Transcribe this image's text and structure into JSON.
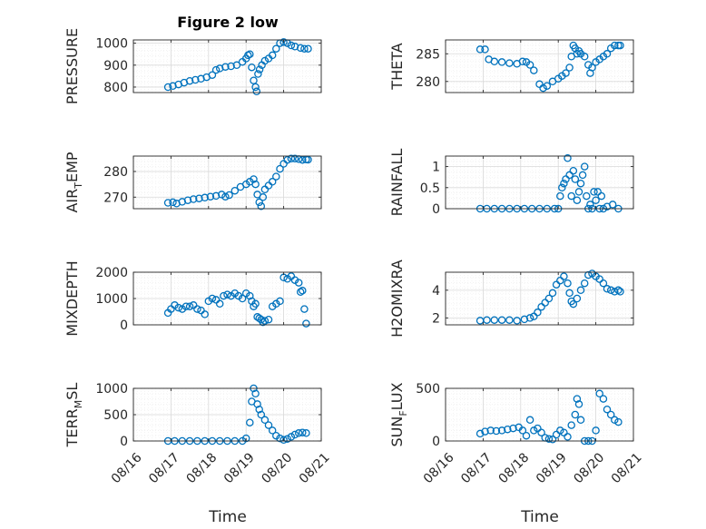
{
  "figure": {
    "title": "Figure 2 low",
    "xlabel": "Time"
  },
  "colors": {
    "marker": "#0072BD",
    "axis": "#262626",
    "grid": "#d9d9d9",
    "minorgrid": "#ececec"
  },
  "chart_data": [
    {
      "type": "scatter",
      "ylabel": "PRESSURE",
      "xlim": [
        0,
        5
      ],
      "ylim": [
        775,
        1015
      ],
      "yticks": [
        800,
        900,
        1000
      ],
      "xticks": [
        0,
        1,
        2,
        3,
        4,
        5
      ],
      "xticklabels": [],
      "grid": true,
      "x": [
        0.92,
        1.05,
        1.2,
        1.35,
        1.5,
        1.65,
        1.8,
        1.95,
        2.1,
        2.2,
        2.3,
        2.45,
        2.6,
        2.75,
        2.9,
        3.0,
        3.05,
        3.1,
        3.15,
        3.2,
        3.25,
        3.28,
        3.32,
        3.36,
        3.42,
        3.5,
        3.6,
        3.7,
        3.8,
        3.9,
        4.0,
        4.1,
        4.2,
        4.3,
        4.45,
        4.55,
        4.65
      ],
      "y": [
        800,
        805,
        812,
        820,
        828,
        833,
        838,
        845,
        855,
        878,
        885,
        892,
        895,
        900,
        915,
        930,
        945,
        950,
        890,
        830,
        800,
        780,
        860,
        880,
        900,
        920,
        930,
        945,
        975,
        1000,
        1005,
        1000,
        990,
        985,
        978,
        975,
        975
      ]
    },
    {
      "type": "scatter",
      "ylabel": "THETA",
      "xlim": [
        0,
        5
      ],
      "ylim": [
        278,
        287.5
      ],
      "yticks": [
        280,
        285
      ],
      "xticks": [
        0,
        1,
        2,
        3,
        4,
        5
      ],
      "xticklabels": [],
      "grid": true,
      "x": [
        0.92,
        1.05,
        1.15,
        1.3,
        1.5,
        1.7,
        1.9,
        2.05,
        2.15,
        2.25,
        2.35,
        2.5,
        2.6,
        2.7,
        2.85,
        3.0,
        3.1,
        3.2,
        3.3,
        3.35,
        3.4,
        3.45,
        3.5,
        3.55,
        3.6,
        3.7,
        3.8,
        3.85,
        3.9,
        4.0,
        4.1,
        4.2,
        4.3,
        4.4,
        4.5,
        4.6,
        4.65
      ],
      "y": [
        285.8,
        285.8,
        284,
        283.6,
        283.5,
        283.3,
        283.2,
        283.6,
        283.5,
        283,
        282,
        279.5,
        278.8,
        279.2,
        280,
        280.5,
        281,
        281.5,
        282.5,
        284.5,
        286.5,
        286,
        285,
        285.5,
        285,
        284.5,
        283,
        281.5,
        282.5,
        283.5,
        284,
        284.5,
        285,
        286,
        286.5,
        286.5,
        286.5
      ]
    },
    {
      "type": "scatter",
      "ylabel": "AIR",
      "ylabel_sub": "T",
      "ylabel_tail": "EMP",
      "xlim": [
        0,
        5
      ],
      "ylim": [
        265.5,
        286
      ],
      "yticks": [
        270,
        280
      ],
      "xticks": [
        0,
        1,
        2,
        3,
        4,
        5
      ],
      "xticklabels": [],
      "grid": true,
      "x": [
        0.92,
        1.05,
        1.15,
        1.3,
        1.45,
        1.6,
        1.75,
        1.9,
        2.05,
        2.2,
        2.35,
        2.45,
        2.55,
        2.7,
        2.85,
        3.0,
        3.1,
        3.2,
        3.25,
        3.3,
        3.35,
        3.4,
        3.45,
        3.5,
        3.6,
        3.7,
        3.8,
        3.9,
        4.0,
        4.1,
        4.2,
        4.3,
        4.4,
        4.5,
        4.6,
        4.65
      ],
      "y": [
        267.8,
        268,
        267.5,
        268.2,
        268.8,
        269.2,
        269.5,
        269.8,
        270.2,
        270.5,
        271,
        270.2,
        270.8,
        272.5,
        274,
        275,
        276,
        277,
        275,
        271,
        268,
        266.5,
        270,
        273,
        274.5,
        276,
        278,
        281,
        283,
        284.5,
        285,
        285,
        284.8,
        284.5,
        284.7,
        284.6
      ]
    },
    {
      "type": "scatter",
      "ylabel": "RAINFALL",
      "xlim": [
        0,
        5
      ],
      "ylim": [
        0,
        1.25
      ],
      "yticks": [
        0,
        0.5,
        1
      ],
      "xticks": [
        0,
        1,
        2,
        3,
        4,
        5
      ],
      "xticklabels": [],
      "grid": true,
      "x": [
        0.92,
        1.1,
        1.3,
        1.5,
        1.7,
        1.9,
        2.1,
        2.3,
        2.5,
        2.7,
        2.9,
        3.0,
        3.05,
        3.1,
        3.15,
        3.2,
        3.25,
        3.3,
        3.35,
        3.4,
        3.45,
        3.5,
        3.55,
        3.6,
        3.65,
        3.7,
        3.75,
        3.8,
        3.85,
        3.9,
        3.95,
        4.0,
        4.05,
        4.1,
        4.15,
        4.2,
        4.3,
        4.45,
        4.6
      ],
      "y": [
        0,
        0,
        0,
        0,
        0,
        0,
        0,
        0,
        0,
        0,
        0,
        0,
        0.3,
        0.5,
        0.6,
        0.7,
        1.2,
        0.8,
        0.3,
        0.9,
        0.7,
        0.2,
        0.4,
        0.6,
        0.8,
        1.0,
        0.3,
        0,
        0.1,
        0,
        0.4,
        0.2,
        0.4,
        0,
        0.3,
        0,
        0.05,
        0.1,
        0
      ]
    },
    {
      "type": "scatter",
      "ylabel": "MIXDEPTH",
      "xlim": [
        0,
        5
      ],
      "ylim": [
        0,
        2000
      ],
      "yticks": [
        0,
        1000,
        2000
      ],
      "xticks": [
        0,
        1,
        2,
        3,
        4,
        5
      ],
      "xticklabels": [],
      "grid": true,
      "x": [
        0.92,
        1.0,
        1.1,
        1.2,
        1.3,
        1.4,
        1.5,
        1.6,
        1.7,
        1.8,
        1.9,
        2.0,
        2.1,
        2.2,
        2.3,
        2.4,
        2.5,
        2.6,
        2.7,
        2.8,
        2.9,
        3.0,
        3.1,
        3.15,
        3.2,
        3.25,
        3.3,
        3.35,
        3.4,
        3.45,
        3.5,
        3.6,
        3.7,
        3.8,
        3.9,
        4.0,
        4.1,
        4.2,
        4.3,
        4.4,
        4.45,
        4.5,
        4.55,
        4.6
      ],
      "y": [
        450,
        600,
        750,
        650,
        600,
        700,
        700,
        750,
        600,
        550,
        400,
        900,
        1000,
        950,
        800,
        1100,
        1150,
        1100,
        1200,
        1100,
        1000,
        1200,
        1100,
        900,
        700,
        800,
        300,
        250,
        200,
        100,
        150,
        200,
        700,
        800,
        900,
        1800,
        1750,
        1850,
        1700,
        1600,
        1250,
        1300,
        600,
        50
      ]
    },
    {
      "type": "scatter",
      "ylabel": "H2OMIXRA",
      "xlim": [
        0,
        5
      ],
      "ylim": [
        1.5,
        5.3
      ],
      "yticks": [
        2,
        4
      ],
      "xticks": [
        0,
        1,
        2,
        3,
        4,
        5
      ],
      "xticklabels": [],
      "grid": true,
      "x": [
        0.92,
        1.1,
        1.3,
        1.5,
        1.7,
        1.9,
        2.1,
        2.25,
        2.35,
        2.45,
        2.55,
        2.65,
        2.75,
        2.85,
        2.95,
        3.05,
        3.15,
        3.25,
        3.3,
        3.35,
        3.4,
        3.5,
        3.6,
        3.7,
        3.8,
        3.9,
        4.0,
        4.1,
        4.2,
        4.3,
        4.4,
        4.5,
        4.6,
        4.65
      ],
      "y": [
        1.8,
        1.85,
        1.85,
        1.85,
        1.85,
        1.8,
        1.9,
        2.0,
        2.1,
        2.4,
        2.8,
        3.1,
        3.4,
        3.8,
        4.4,
        4.7,
        5.0,
        4.5,
        3.8,
        3.2,
        3.0,
        3.4,
        4.0,
        4.5,
        5.1,
        5.2,
        5.0,
        4.8,
        4.5,
        4.1,
        4.0,
        3.9,
        4.0,
        3.9
      ]
    },
    {
      "type": "scatter",
      "ylabel": "TERR",
      "ylabel_sub": "M",
      "ylabel_tail": "SL",
      "xlim": [
        0,
        5
      ],
      "ylim": [
        0,
        1000
      ],
      "yticks": [
        0,
        500,
        1000
      ],
      "xticks": [
        0,
        1,
        2,
        3,
        4,
        5
      ],
      "xticklabels": [
        "08/16",
        "08/17",
        "08/18",
        "08/19",
        "08/20",
        "08/21"
      ],
      "grid": true,
      "x": [
        0.92,
        1.1,
        1.3,
        1.5,
        1.7,
        1.9,
        2.1,
        2.3,
        2.5,
        2.7,
        2.9,
        3.0,
        3.1,
        3.15,
        3.2,
        3.25,
        3.3,
        3.35,
        3.4,
        3.5,
        3.6,
        3.7,
        3.8,
        3.9,
        4.0,
        4.1,
        4.2,
        4.3,
        4.4,
        4.5,
        4.6
      ],
      "y": [
        0,
        0,
        0,
        0,
        0,
        0,
        0,
        0,
        0,
        0,
        0,
        50,
        350,
        750,
        1000,
        900,
        700,
        600,
        500,
        400,
        300,
        200,
        100,
        50,
        20,
        40,
        80,
        120,
        150,
        160,
        150
      ]
    },
    {
      "type": "scatter",
      "ylabel": "SUN",
      "ylabel_sub": "F",
      "ylabel_tail": "LUX",
      "xlim": [
        0,
        5
      ],
      "ylim": [
        0,
        500
      ],
      "yticks": [
        0,
        500
      ],
      "xticks": [
        0,
        1,
        2,
        3,
        4,
        5
      ],
      "xticklabels": [
        "08/16",
        "08/17",
        "08/18",
        "08/19",
        "08/20",
        "08/21"
      ],
      "grid": true,
      "x": [
        0.92,
        1.05,
        1.2,
        1.35,
        1.5,
        1.65,
        1.8,
        1.95,
        2.05,
        2.15,
        2.25,
        2.35,
        2.45,
        2.55,
        2.65,
        2.75,
        2.85,
        2.95,
        3.05,
        3.15,
        3.25,
        3.35,
        3.45,
        3.5,
        3.55,
        3.6,
        3.7,
        3.8,
        3.9,
        4.0,
        4.1,
        4.2,
        4.3,
        4.4,
        4.5,
        4.6
      ],
      "y": [
        70,
        90,
        100,
        95,
        100,
        110,
        120,
        130,
        100,
        50,
        200,
        100,
        120,
        80,
        30,
        20,
        15,
        60,
        100,
        80,
        40,
        150,
        250,
        400,
        350,
        200,
        0,
        0,
        0,
        100,
        450,
        400,
        300,
        250,
        200,
        180
      ]
    }
  ]
}
